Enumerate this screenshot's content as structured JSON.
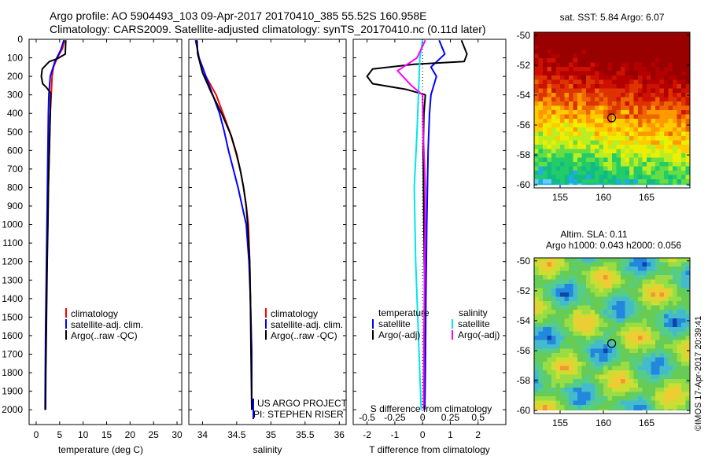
{
  "title": {
    "line1": "Argo profile: AO 5904493_103 09-Apr-2017 20170410_385 55.52S 160.958E",
    "line2": "Climatology: CARS2009. Satellite-adjusted climatology: synTS_20170410.nc (0.11d later)"
  },
  "credit": "©IMOS 17-Apr-2017 20:39:41",
  "project_note": [
    "US ARGO PROJECT",
    "PI: STEPHEN RISER"
  ],
  "colors": {
    "climatology": "#ff0000",
    "satellite": "#0000ff",
    "argo": "#000000",
    "cyan": "#00e5ee",
    "magenta": "#ff00ff"
  },
  "chart_data": [
    {
      "id": "temperature",
      "type": "line",
      "xlabel": "temperature (deg C)",
      "xlim": [
        -1.5,
        31
      ],
      "xticks": [
        0,
        5,
        10,
        15,
        20,
        25,
        30
      ],
      "ylim": [
        2080,
        0
      ],
      "yticks": [
        0,
        100,
        200,
        300,
        400,
        500,
        600,
        700,
        800,
        900,
        1000,
        1100,
        1200,
        1300,
        1400,
        1500,
        1600,
        1700,
        1800,
        1900,
        2000
      ],
      "legend": [
        "climatology",
        "satellite-adj. clim.",
        "Argo(..raw -QC)"
      ],
      "series": [
        {
          "name": "climatology",
          "color": "#ff0000",
          "points": [
            [
              6.0,
              5
            ],
            [
              5.6,
              50
            ],
            [
              4.5,
              100
            ],
            [
              3.7,
              150
            ],
            [
              3.4,
              200
            ],
            [
              3.2,
              300
            ],
            [
              3.0,
              400
            ],
            [
              2.8,
              600
            ],
            [
              2.6,
              800
            ],
            [
              2.45,
              1000
            ],
            [
              2.3,
              1200
            ],
            [
              2.2,
              1400
            ],
            [
              2.1,
              1600
            ],
            [
              2.0,
              1800
            ],
            [
              1.95,
              2000
            ]
          ]
        },
        {
          "name": "satellite-adj. clim.",
          "color": "#0000ff",
          "points": [
            [
              5.9,
              5
            ],
            [
              5.2,
              60
            ],
            [
              4.0,
              120
            ],
            [
              3.0,
              200
            ],
            [
              2.7,
              300
            ],
            [
              2.6,
              400
            ],
            [
              2.5,
              600
            ],
            [
              2.4,
              800
            ],
            [
              2.3,
              1000
            ],
            [
              2.2,
              1200
            ],
            [
              2.1,
              1400
            ],
            [
              2.0,
              1600
            ],
            [
              1.95,
              1800
            ],
            [
              1.9,
              2000
            ]
          ]
        },
        {
          "name": "Argo(..raw -QC)",
          "color": "#000000",
          "points": [
            [
              6.3,
              5
            ],
            [
              6.2,
              80
            ],
            [
              4.5,
              105
            ],
            [
              2.8,
              120
            ],
            [
              1.3,
              160
            ],
            [
              1.1,
              200
            ],
            [
              1.4,
              240
            ],
            [
              2.2,
              260
            ],
            [
              3.1,
              290
            ],
            [
              3.0,
              400
            ],
            [
              2.8,
              600
            ],
            [
              2.6,
              800
            ],
            [
              2.5,
              1000
            ],
            [
              2.35,
              1200
            ],
            [
              2.25,
              1400
            ],
            [
              2.15,
              1600
            ],
            [
              2.05,
              1800
            ],
            [
              2.0,
              2000
            ]
          ]
        }
      ]
    },
    {
      "id": "salinity",
      "type": "line",
      "xlabel": "salinity",
      "xlim": [
        33.8,
        36.1
      ],
      "xticks": [
        34,
        34.5,
        35,
        35.5,
        36
      ],
      "xtick_labels": [
        "34",
        "34.5",
        "35",
        "35.5",
        "36"
      ],
      "ylim": [
        2080,
        0
      ],
      "legend": [
        "climatology",
        "satellite-adj. clim.",
        "Argo(..raw -QC)"
      ],
      "series": [
        {
          "name": "climatology",
          "color": "#ff0000",
          "points": [
            [
              33.9,
              5
            ],
            [
              33.95,
              100
            ],
            [
              34.05,
              200
            ],
            [
              34.2,
              300
            ],
            [
              34.3,
              400
            ],
            [
              34.4,
              500
            ],
            [
              34.48,
              600
            ],
            [
              34.55,
              700
            ],
            [
              34.6,
              800
            ],
            [
              34.64,
              900
            ],
            [
              34.67,
              1000
            ],
            [
              34.69,
              1200
            ],
            [
              34.7,
              1400
            ],
            [
              34.72,
              1700
            ],
            [
              34.72,
              2000
            ]
          ]
        },
        {
          "name": "satellite-adj. clim.",
          "color": "#0000ff",
          "points": [
            [
              33.9,
              5
            ],
            [
              33.95,
              100
            ],
            [
              34.05,
              200
            ],
            [
              34.15,
              300
            ],
            [
              34.25,
              400
            ],
            [
              34.32,
              500
            ],
            [
              34.38,
              600
            ],
            [
              34.45,
              700
            ],
            [
              34.52,
              800
            ],
            [
              34.58,
              900
            ],
            [
              34.64,
              1000
            ],
            [
              34.68,
              1200
            ],
            [
              34.7,
              1400
            ],
            [
              34.72,
              1700
            ],
            [
              34.72,
              2000
            ]
          ]
        },
        {
          "name": "Argo(..raw -QC)",
          "color": "#000000",
          "points": [
            [
              33.92,
              5
            ],
            [
              33.93,
              80
            ],
            [
              34.0,
              180
            ],
            [
              34.12,
              280
            ],
            [
              34.28,
              400
            ],
            [
              34.42,
              520
            ],
            [
              34.5,
              620
            ],
            [
              34.56,
              720
            ],
            [
              34.6,
              800
            ],
            [
              34.64,
              900
            ],
            [
              34.66,
              1000
            ],
            [
              34.69,
              1200
            ],
            [
              34.7,
              1400
            ],
            [
              34.71,
              1700
            ],
            [
              34.72,
              2000
            ]
          ]
        }
      ]
    },
    {
      "id": "difference",
      "type": "line",
      "xlabel": "T difference from climatology",
      "top_label": "S difference from climatology",
      "xlim": [
        -2.5,
        3.0
      ],
      "xticks": [
        -2,
        -1,
        0,
        1,
        2
      ],
      "top_ticks": [
        -0.5,
        -0.25,
        0,
        0.25,
        0.5
      ],
      "top_tick_labels": [
        "-0.5",
        "-0.25",
        "0",
        "0.25",
        "0.5"
      ],
      "ylim": [
        2080,
        0
      ],
      "legend_titles": [
        "temperature",
        "salinity"
      ],
      "legend": [
        [
          "satellite",
          "Argo(-adj)"
        ],
        [
          "satellite",
          "Argo(-adj)"
        ]
      ],
      "series": [
        {
          "name": "temperature satellite",
          "color": "#0000ff",
          "points": [
            [
              0.6,
              5
            ],
            [
              0.8,
              80
            ],
            [
              0.3,
              150
            ],
            [
              0.5,
              200
            ],
            [
              0.3,
              300
            ],
            [
              0.25,
              400
            ],
            [
              0.2,
              600
            ],
            [
              0.15,
              1000
            ],
            [
              0.12,
              1400
            ],
            [
              0.1,
              1800
            ],
            [
              0.08,
              2000
            ]
          ]
        },
        {
          "name": "temperature Argo(-adj)",
          "color": "#000000",
          "points": [
            [
              1.4,
              5
            ],
            [
              1.6,
              80
            ],
            [
              1.5,
              120
            ],
            [
              -0.3,
              135
            ],
            [
              -1.8,
              160
            ],
            [
              -2.0,
              200
            ],
            [
              -1.8,
              240
            ],
            [
              -0.6,
              270
            ],
            [
              0.1,
              300
            ],
            [
              0.05,
              400
            ],
            [
              0.02,
              600
            ],
            [
              0.05,
              1000
            ],
            [
              0.08,
              1400
            ],
            [
              0.05,
              1800
            ],
            [
              0.05,
              2000
            ]
          ]
        },
        {
          "name": "salinity satellite",
          "color": "#00e5ee",
          "points": [
            [
              0.0,
              5
            ],
            [
              -0.1,
              100
            ],
            [
              -0.15,
              300
            ],
            [
              -0.2,
              500
            ],
            [
              -0.3,
              800
            ],
            [
              -0.25,
              1200
            ],
            [
              -0.15,
              1600
            ],
            [
              -0.05,
              2000
            ]
          ]
        },
        {
          "name": "salinity Argo(-adj)",
          "color": "#ff00ff",
          "points": [
            [
              0.1,
              5
            ],
            [
              -0.2,
              100
            ],
            [
              -0.9,
              170
            ],
            [
              -0.4,
              250
            ],
            [
              0.0,
              300
            ],
            [
              0.02,
              500
            ],
            [
              0.1,
              800
            ],
            [
              0.08,
              1200
            ],
            [
              0.05,
              1600
            ],
            [
              0.04,
              2000
            ]
          ]
        }
      ]
    }
  ],
  "maps": [
    {
      "id": "sst-map",
      "title": "sat. SST: 5.84  Argo: 6.07",
      "xticks": [
        155,
        160,
        165
      ],
      "yticks": [
        -50,
        -52,
        -54,
        -56,
        -58,
        -60
      ],
      "lon_range": [
        152,
        170
      ],
      "lat_range": [
        -60.2,
        -49.8
      ],
      "profile": {
        "lon": 160.96,
        "lat": -55.52
      }
    },
    {
      "id": "sla-map",
      "title_lines": [
        "Altim. SLA: 0.11",
        "Argo h1000: 0.043 h2000: 0.056"
      ],
      "xticks": [
        155,
        160,
        165
      ],
      "yticks": [
        -50,
        -52,
        -54,
        -56,
        -58,
        -60
      ],
      "lon_range": [
        152,
        170
      ],
      "lat_range": [
        -60.2,
        -49.8
      ],
      "profile": {
        "lon": 160.96,
        "lat": -55.52
      }
    }
  ]
}
